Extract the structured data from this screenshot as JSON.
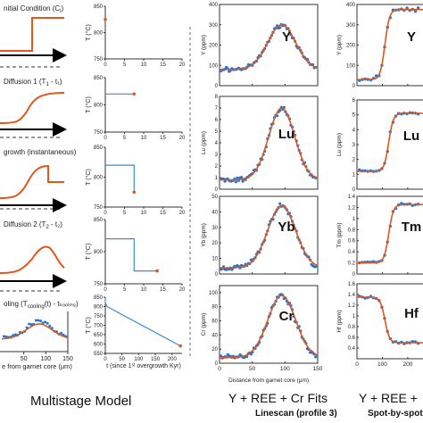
{
  "colors": {
    "model": "#e0561c",
    "line": "#3a8fd0",
    "points": "#1f77d4",
    "fit": "#e0561c",
    "axis": "#333333",
    "arrow": "#000000",
    "dash": "#9a9a9a"
  },
  "left": {
    "title": "Multistage Model",
    "stages": [
      {
        "label": "nitial Condition (C",
        "sub": "i",
        "tail": ")"
      },
      {
        "label": "Diffusion 1 (T",
        "sub": "1",
        "tail": " - t₁)"
      },
      {
        "label": "growth (instantaneous)",
        "sub": "",
        "tail": ""
      },
      {
        "label": "Diffusion 2 (T",
        "sub": "2",
        "tail": " - t₂)"
      },
      {
        "label": "oling (T",
        "sub": "cooling",
        "tail": "(t) - tₖₒₒₗᵢₙ₉)"
      }
    ],
    "profile_xticks": [
      "50",
      "100",
      "150"
    ],
    "profile_xlabel": "e from garnet core (μm)"
  },
  "middle": {
    "ylabel": "T (°C)",
    "xticks": [
      "0",
      "5",
      "10",
      "15",
      "20"
    ],
    "plot5_xticks": [
      "0",
      "50",
      "100",
      "150",
      "200"
    ],
    "plot5_xlabel": "t (since 1ˢᵗ overgrowth Kyr)"
  },
  "chart_data": [
    {
      "type": "line",
      "panel": "T-t 1",
      "x": [
        0
      ],
      "y": [
        825
      ],
      "ylim": [
        750,
        850
      ],
      "yticks": [
        "750",
        "800",
        "850"
      ],
      "xlim": [
        0,
        20
      ]
    },
    {
      "type": "line",
      "panel": "T-t 2",
      "x": [
        0,
        7.5
      ],
      "y": [
        820,
        820
      ],
      "ylim": [
        750,
        850
      ],
      "yticks": [
        "750",
        "800",
        "850"
      ],
      "xlim": [
        0,
        20
      ]
    },
    {
      "type": "line",
      "panel": "T-t 3",
      "x": [
        0,
        7.5,
        7.5
      ],
      "y": [
        820,
        820,
        775
      ],
      "ylim": [
        750,
        850
      ],
      "yticks": [
        "750",
        "800",
        "850"
      ],
      "xlim": [
        0,
        20
      ]
    },
    {
      "type": "line",
      "panel": "T-t 4",
      "x": [
        0,
        7.5,
        7.5,
        13.5
      ],
      "y": [
        820,
        820,
        770,
        770
      ],
      "ylim": [
        750,
        850
      ],
      "yticks": [
        "750",
        "800",
        "850"
      ],
      "xlim": [
        0,
        20
      ]
    },
    {
      "type": "line",
      "panel": "T-t 5",
      "x": [
        0,
        0,
        5,
        225
      ],
      "y": [
        845,
        820,
        800,
        590
      ],
      "ylim": [
        550,
        850
      ],
      "yticks": [
        "550",
        "600",
        "650",
        "700",
        "750",
        "800",
        "850"
      ],
      "xlim": [
        0,
        230
      ]
    },
    {
      "type": "scatter",
      "panel": "Linescan",
      "title": "Y + REE + Cr Fits",
      "subtitle": "Linescan (profile 3)",
      "xlabel": "Distance from garnet core (μm)",
      "xlim": [
        0,
        150
      ],
      "xticks": [
        "0",
        "50",
        "100",
        "150"
      ],
      "subplots": [
        {
          "label": "Y",
          "ylabel": "Y (ppm)",
          "ylim": [
            0,
            400
          ],
          "yticks": [
            "0",
            "100",
            "200",
            "300",
            "400"
          ],
          "base": 80,
          "peak": 300,
          "center": 95,
          "width": 30
        },
        {
          "label": "Lu",
          "ylabel": "Lu (ppm)",
          "ylim": [
            0,
            8
          ],
          "yticks": [
            "0",
            "1",
            "2",
            "3",
            "4",
            "5",
            "6",
            "7",
            "8"
          ],
          "base": 0.8,
          "peak": 7.0,
          "center": 95,
          "width": 28
        },
        {
          "label": "Yb",
          "ylabel": "Yb (ppm)",
          "ylim": [
            0,
            50
          ],
          "yticks": [
            "0",
            "10",
            "20",
            "30",
            "40",
            "50"
          ],
          "base": 4,
          "peak": 44,
          "center": 95,
          "width": 30
        },
        {
          "label": "Cr",
          "ylabel": "Cr (ppm)",
          "ylim": [
            0,
            110
          ],
          "yticks": [
            "0",
            "20",
            "40",
            "60",
            "80",
            "100"
          ],
          "base": 8,
          "peak": 96,
          "center": 95,
          "width": 30
        }
      ]
    },
    {
      "type": "scatter",
      "panel": "Spot-by-spot",
      "title": "Y + REE + ",
      "subtitle": "Spot-by-spot (",
      "xlim": [
        0,
        260
      ],
      "xticks": [
        "0",
        "100",
        "200"
      ],
      "subplots": [
        {
          "label": "Y",
          "ylabel": "Y (ppm)",
          "ylim": [
            0,
            400
          ],
          "yticks": [
            "0",
            "100",
            "200",
            "300",
            "400"
          ],
          "low": 30,
          "high": 375,
          "mid": 110,
          "dir": 1
        },
        {
          "label": "Lu",
          "ylabel": "Lu (ppm)",
          "ylim": [
            0,
            6
          ],
          "yticks": [
            "0",
            "1",
            "2",
            "3",
            "4",
            "5",
            "6"
          ],
          "low": 1.2,
          "high": 5.1,
          "mid": 125,
          "dir": 1
        },
        {
          "label": "Tm",
          "ylabel": "Tm (ppm)",
          "ylim": [
            0,
            1.4
          ],
          "yticks": [
            "0",
            "0.2",
            "0.4",
            "0.6",
            "0.8",
            "1",
            "1.2",
            "1.4"
          ],
          "low": 0.2,
          "high": 1.25,
          "mid": 125,
          "dir": 1
        },
        {
          "label": "Hf",
          "ylabel": "Hf (ppm)",
          "ylim": [
            0.2,
            1.6
          ],
          "yticks": [
            "0.4",
            "0.6",
            "0.8",
            "1",
            "1.2",
            "1.4",
            "1.6"
          ],
          "low": 0.5,
          "high": 1.35,
          "mid": 110,
          "dir": -1
        }
      ]
    }
  ]
}
